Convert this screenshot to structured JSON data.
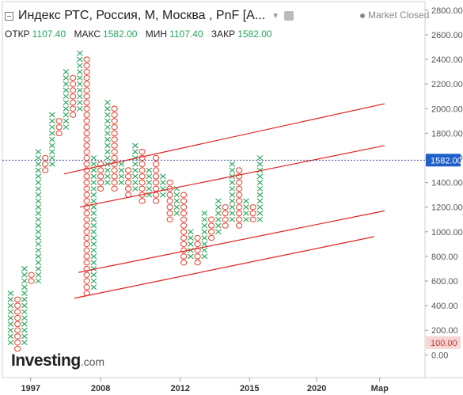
{
  "header": {
    "title": "Индекс РТС, Россия, M, Москва , PnF [A...",
    "market_status": "Market Closed"
  },
  "ohlc": [
    {
      "label": "ОТКР",
      "value": "1107.40"
    },
    {
      "label": "МАКС",
      "value": "1582.00"
    },
    {
      "label": "МИН",
      "value": "1107.40"
    },
    {
      "label": "ЗАКР",
      "value": "1582.00"
    }
  ],
  "logo": {
    "name": "Investing",
    "suffix": ".com"
  },
  "colors": {
    "x_color": "#26a65b",
    "o_color": "#e74c3c",
    "trend": "#e02020",
    "axis_text": "#555555",
    "price_line": "#1f3a8a"
  },
  "chart_data": {
    "type": "point-and-figure",
    "y_axis": {
      "ticks": [
        "0.00",
        "200.00",
        "400.00",
        "600.00",
        "800.00",
        "1000.00",
        "1200.00",
        "1400.00",
        "1600.00",
        "1800.00",
        "2000.00",
        "2200.00",
        "2400.00",
        "2600.00",
        "2800.00"
      ],
      "range": [
        -50,
        2830
      ],
      "current_price": {
        "value": 1582,
        "label": "1582.00"
      },
      "marker": {
        "value": 100,
        "label": "100.00"
      }
    },
    "x_axis": {
      "ticks": [
        {
          "label": "1997",
          "col": 3.4
        },
        {
          "label": "2008",
          "col": 13.5
        },
        {
          "label": "2012",
          "col": 25.0
        },
        {
          "label": "2015",
          "col": 35.0
        },
        {
          "label": "2020",
          "col": 44.7
        },
        {
          "label": "Мар",
          "col": 53.8
        }
      ]
    },
    "box_size": 50,
    "columns": [
      {
        "type": "X",
        "low": 100,
        "high": 500
      },
      {
        "type": "O",
        "low": 50,
        "high": 450
      },
      {
        "type": "X",
        "low": 100,
        "high": 700
      },
      {
        "type": "O",
        "low": 600,
        "high": 650
      },
      {
        "type": "X",
        "low": 600,
        "high": 1650
      },
      {
        "type": "O",
        "low": 1500,
        "high": 1600
      },
      {
        "type": "X",
        "low": 1550,
        "high": 1950
      },
      {
        "type": "O",
        "low": 1800,
        "high": 1900
      },
      {
        "type": "X",
        "low": 1850,
        "high": 2300
      },
      {
        "type": "O",
        "low": 1950,
        "high": 2250
      },
      {
        "type": "X",
        "low": 2000,
        "high": 2450
      },
      {
        "type": "O",
        "low": 500,
        "high": 2400
      },
      {
        "type": "X",
        "low": 550,
        "high": 1600
      },
      {
        "type": "O",
        "low": 1350,
        "high": 1550
      },
      {
        "type": "X",
        "low": 1400,
        "high": 2050
      },
      {
        "type": "O",
        "low": 1350,
        "high": 2000
      },
      {
        "type": "X",
        "low": 1400,
        "high": 1550
      },
      {
        "type": "O",
        "low": 1300,
        "high": 1500
      },
      {
        "type": "X",
        "low": 1350,
        "high": 1700
      },
      {
        "type": "O",
        "low": 1250,
        "high": 1650
      },
      {
        "type": "X",
        "low": 1300,
        "high": 1500
      },
      {
        "type": "O",
        "low": 1250,
        "high": 1600
      },
      {
        "type": "X",
        "low": 1300,
        "high": 1450
      },
      {
        "type": "O",
        "low": 1100,
        "high": 1400
      },
      {
        "type": "X",
        "low": 1150,
        "high": 1350
      },
      {
        "type": "O",
        "low": 750,
        "high": 1300
      },
      {
        "type": "X",
        "low": 800,
        "high": 1000
      },
      {
        "type": "O",
        "low": 750,
        "high": 950
      },
      {
        "type": "X",
        "low": 800,
        "high": 1150
      },
      {
        "type": "O",
        "low": 950,
        "high": 1100
      },
      {
        "type": "X",
        "low": 1000,
        "high": 1250
      },
      {
        "type": "O",
        "low": 1050,
        "high": 1200
      },
      {
        "type": "X",
        "low": 1100,
        "high": 1550
      },
      {
        "type": "O",
        "low": 1050,
        "high": 1500
      },
      {
        "type": "X",
        "low": 1100,
        "high": 1250
      },
      {
        "type": "O",
        "low": 1100,
        "high": 1200
      },
      {
        "type": "X",
        "low": 1100,
        "high": 1582
      }
    ],
    "trend_lines": [
      {
        "col1": 8.2,
        "p1": 1470,
        "col2": 54.5,
        "p2": 2040
      },
      {
        "col1": 10.5,
        "p1": 1200,
        "col2": 54.5,
        "p2": 1700
      },
      {
        "col1": 10.3,
        "p1": 670,
        "col2": 54.5,
        "p2": 1170
      },
      {
        "col1": 9.7,
        "p1": 460,
        "col2": 53.0,
        "p2": 960
      }
    ]
  }
}
